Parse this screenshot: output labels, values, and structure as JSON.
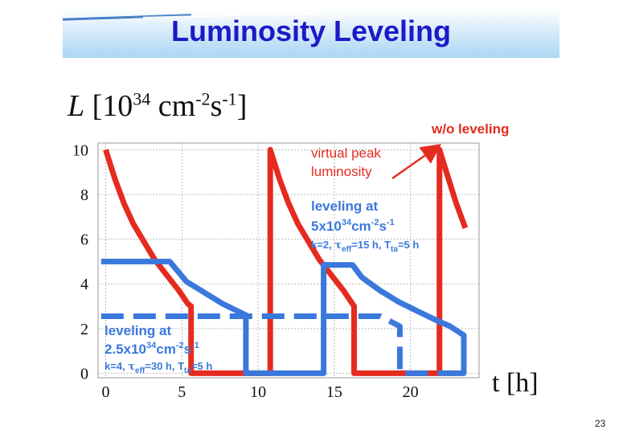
{
  "slide": {
    "title": "Luminosity Leveling",
    "ylabel_parts": [
      "L",
      "[10",
      "34",
      " cm",
      "-2",
      "s",
      "-1",
      "]"
    ],
    "xlabel": "t [h]",
    "page_number": "23"
  },
  "chart_data": {
    "type": "line",
    "xlim": [
      -0.5,
      24.5
    ],
    "ylim": [
      -0.2,
      10.3
    ],
    "x_ticks": [
      0,
      5,
      10,
      15,
      20
    ],
    "y_ticks": [
      0,
      2,
      4,
      6,
      8,
      10
    ],
    "grid": true,
    "colors": {
      "red": "#e52b1f",
      "blue": "#3a78dc"
    },
    "series": [
      {
        "color": "red",
        "style": "solid",
        "points": [
          [
            0,
            10
          ],
          [
            0.6,
            8.7
          ],
          [
            1.2,
            7.6
          ],
          [
            1.8,
            6.7
          ],
          [
            2.5,
            5.9
          ],
          [
            3.2,
            5.1
          ],
          [
            4,
            4.4
          ],
          [
            4.8,
            3.7
          ],
          [
            5.4,
            3.1
          ],
          [
            5.6,
            3.0
          ],
          [
            5.6,
            0
          ],
          [
            10.8,
            0
          ],
          [
            10.8,
            10
          ],
          [
            11.4,
            8.7
          ],
          [
            12,
            7.6
          ],
          [
            12.6,
            6.7
          ],
          [
            13.3,
            5.9
          ],
          [
            14,
            5.1
          ],
          [
            14.8,
            4.4
          ],
          [
            15.6,
            3.7
          ],
          [
            16.1,
            3.2
          ],
          [
            16.3,
            3.0
          ],
          [
            16.3,
            0
          ],
          [
            21.9,
            0
          ],
          [
            21.9,
            10
          ],
          [
            22.4,
            8.9
          ],
          [
            23,
            7.6
          ],
          [
            23.6,
            6.5
          ]
        ]
      },
      {
        "color": "blue",
        "style": "solid",
        "points": [
          [
            -0.3,
            5
          ],
          [
            4.2,
            5
          ],
          [
            5.3,
            4.1
          ],
          [
            6.5,
            3.6
          ],
          [
            7.7,
            3.1
          ],
          [
            8.9,
            2.7
          ],
          [
            9.2,
            2.6
          ],
          [
            9.2,
            0
          ],
          [
            14.3,
            0
          ],
          [
            14.3,
            4.85
          ],
          [
            16.2,
            4.85
          ],
          [
            16.8,
            4.3
          ],
          [
            18,
            3.7
          ],
          [
            19.2,
            3.2
          ],
          [
            20.4,
            2.8
          ],
          [
            21.6,
            2.4
          ],
          [
            22.6,
            2.1
          ],
          [
            23.5,
            1.7
          ],
          [
            23.5,
            0
          ],
          [
            22,
            0
          ]
        ]
      },
      {
        "color": "blue",
        "style": "dashed",
        "points": [
          [
            -0.3,
            2.55
          ],
          [
            18,
            2.55
          ],
          [
            18.6,
            2.35
          ],
          [
            19.3,
            2.1
          ],
          [
            19.3,
            0
          ],
          [
            23,
            0
          ]
        ]
      }
    ],
    "annotations": [
      {
        "id": "wo-leveling",
        "text": "w/o leveling",
        "color": "red",
        "bold": true
      },
      {
        "id": "virtual-peak",
        "lines": [
          "virtual peak",
          "luminosity"
        ],
        "color": "red",
        "bold": false
      },
      {
        "id": "leveling-5",
        "lines": [
          "leveling at",
          "5x10",
          "34",
          "cm",
          "-2",
          "s",
          "-1"
        ],
        "color": "blue",
        "bold": true
      },
      {
        "id": "params-5",
        "parts": [
          "k=2, ",
          "τ",
          "eff",
          "=15 h, T",
          "ta",
          "=5 h"
        ],
        "color": "blue"
      },
      {
        "id": "leveling-25",
        "lines": [
          "leveling at",
          "2.5x10",
          "34",
          "cm",
          "-2",
          "s",
          "-1"
        ],
        "color": "blue",
        "bold": true
      },
      {
        "id": "params-25",
        "parts": [
          "k=4, ",
          "τ",
          "eff",
          "=30 h, T",
          "ta",
          "=5 h"
        ],
        "color": "blue"
      }
    ]
  }
}
